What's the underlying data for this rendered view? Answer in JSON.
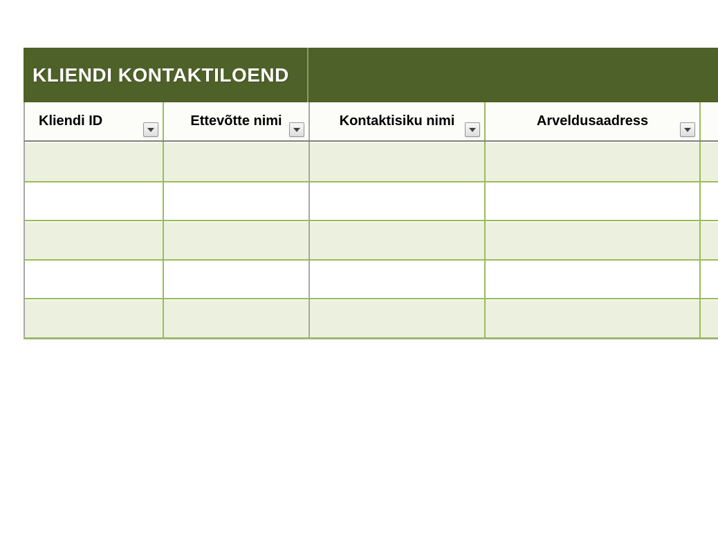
{
  "table": {
    "title": "KLIENDI KONTAKTILOEND",
    "columns": [
      {
        "label": "Kliendi ID",
        "has_filter": true
      },
      {
        "label": "Ettevõtte nimi",
        "has_filter": true
      },
      {
        "label": "Kontaktisiku nimi",
        "has_filter": true
      },
      {
        "label": "Arveldusaadress",
        "has_filter": true
      },
      {
        "label": "",
        "has_filter": false
      }
    ],
    "rows": [
      [
        "",
        "",
        "",
        "",
        ""
      ],
      [
        "",
        "",
        "",
        "",
        ""
      ],
      [
        "",
        "",
        "",
        "",
        ""
      ],
      [
        "",
        "",
        "",
        "",
        ""
      ],
      [
        "",
        "",
        "",
        "",
        ""
      ]
    ]
  },
  "colors": {
    "band": "#4E6128",
    "row-alt": "#EBF1DE",
    "grid-green": "#9BBB59",
    "grid-gray": "#A6A6A6",
    "header-sep": "#808080",
    "band-sep": "#8C9C5E"
  }
}
